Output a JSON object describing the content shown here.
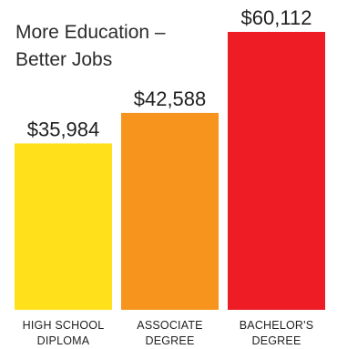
{
  "chart_data": {
    "type": "bar",
    "title_lines": [
      "More Education –",
      "Better Jobs"
    ],
    "categories": [
      [
        "HIGH SCHOOL",
        "DIPLOMA"
      ],
      [
        "ASSOCIATE",
        "DEGREE"
      ],
      [
        "BACHELOR'S",
        "DEGREE"
      ]
    ],
    "values": [
      35984,
      42588,
      60112
    ],
    "value_labels": [
      "$35,984",
      "$42,588",
      "$60,112"
    ],
    "colors": [
      "#ffe01a",
      "#f7941d",
      "#ee1c25"
    ],
    "ylim": [
      0,
      60112
    ],
    "grid": false,
    "legend": "none"
  }
}
